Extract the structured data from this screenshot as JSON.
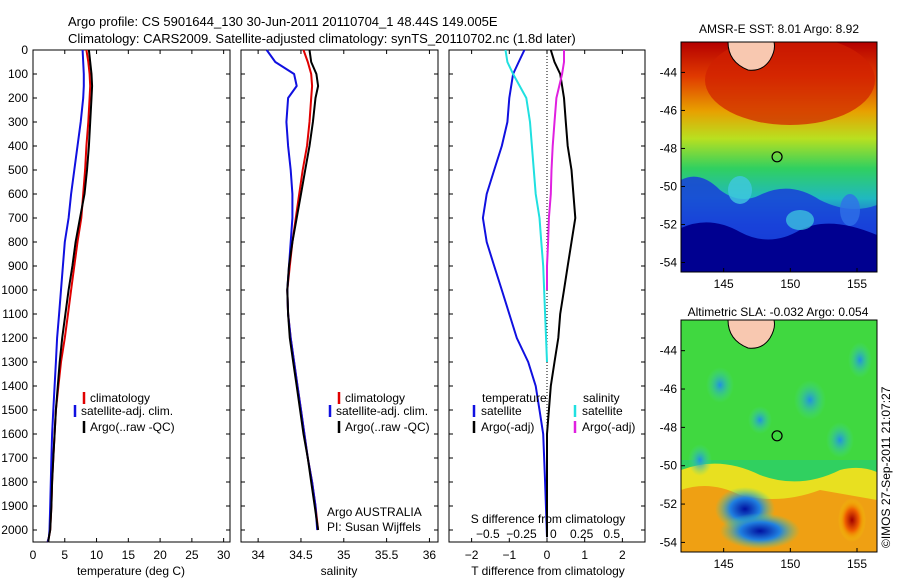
{
  "header": {
    "line1": "Argo profile: CS 5901644_130 30-Jun-2011 20110704_1 48.44S 149.005E",
    "line2": "Climatology: CARS2009. Satellite-adjusted climatology: synTS_20110702.nc (1.8d later)"
  },
  "credit": {
    "line1": "Argo AUSTRALIA",
    "line2": "PI: Susan Wijffels"
  },
  "watermark": "©IMOS 27-Sep-2011 21:07:27",
  "colors": {
    "climatology": "#e00000",
    "satellite": "#1010e0",
    "argo": "#000000",
    "salinity_satellite": "#20e0e0",
    "salinity_argo": "#e020e0",
    "zero_line": "#000000"
  },
  "chart_data": [
    {
      "id": "temperature",
      "type": "line",
      "xlabel": "temperature (deg C)",
      "ylabel": "",
      "xlim": [
        0,
        31
      ],
      "ylim": [
        2050,
        0
      ],
      "xticks": [
        0,
        5,
        10,
        15,
        20,
        25,
        30
      ],
      "yticks": [
        0,
        100,
        200,
        300,
        400,
        500,
        600,
        700,
        800,
        900,
        1000,
        1100,
        1200,
        1300,
        1400,
        1500,
        1600,
        1700,
        1800,
        1900,
        2000
      ],
      "legend": {
        "position": "lower-right",
        "entries": [
          "climatology",
          "satellite-adj. clim.",
          "Argo(..raw -QC)"
        ]
      },
      "series": [
        {
          "name": "climatology",
          "color": "#e00000",
          "x": [
            8.4,
            8.7,
            8.9,
            9.0,
            8.9,
            8.7,
            8.4,
            8.2,
            7.9,
            7.6,
            7.0,
            6.5,
            6.0,
            5.5,
            5.0,
            4.4,
            4.0,
            3.6,
            3.4,
            3.2,
            3.0,
            2.9,
            2.7,
            2.5,
            2.3
          ],
          "y": [
            0,
            50,
            100,
            150,
            200,
            300,
            400,
            500,
            600,
            700,
            800,
            900,
            1000,
            1100,
            1200,
            1300,
            1400,
            1500,
            1600,
            1700,
            1800,
            1900,
            2000,
            2030,
            2050
          ]
        },
        {
          "name": "satellite-adj. clim.",
          "color": "#1010e0",
          "x": [
            7.8,
            7.9,
            8.0,
            8.0,
            7.9,
            7.5,
            7.0,
            6.5,
            6.0,
            5.6,
            5.0,
            4.7,
            4.4,
            4.1,
            3.8,
            3.6,
            3.4,
            3.2,
            3.0,
            2.9,
            2.8,
            2.7,
            2.6,
            2.5,
            2.3
          ],
          "y": [
            0,
            50,
            100,
            150,
            200,
            300,
            400,
            500,
            600,
            700,
            800,
            900,
            1000,
            1100,
            1200,
            1300,
            1400,
            1500,
            1600,
            1700,
            1800,
            1900,
            2000,
            2030,
            2050
          ]
        },
        {
          "name": "Argo(..raw -QC)",
          "color": "#000000",
          "x": [
            8.8,
            9.0,
            9.2,
            9.3,
            9.2,
            9.0,
            8.8,
            8.5,
            8.1,
            7.4,
            6.7,
            6.2,
            5.6,
            5.1,
            4.6,
            4.2,
            3.9,
            3.6,
            3.4,
            3.2,
            3.0,
            2.9,
            2.7,
            2.5,
            2.4
          ],
          "y": [
            0,
            50,
            100,
            150,
            200,
            300,
            400,
            500,
            600,
            700,
            800,
            900,
            1000,
            1100,
            1200,
            1300,
            1400,
            1500,
            1600,
            1700,
            1800,
            1900,
            2000,
            2030,
            2050
          ]
        }
      ]
    },
    {
      "id": "salinity",
      "type": "line",
      "xlabel": "salinity",
      "ylabel": "",
      "xlim": [
        33.8,
        36.1
      ],
      "ylim": [
        2050,
        0
      ],
      "xticks": [
        34,
        34.5,
        35,
        35.5,
        36
      ],
      "legend": {
        "position": "lower-right",
        "entries": [
          "climatology",
          "satellite-adj. clim.",
          "Argo(..raw -QC)"
        ]
      },
      "series": [
        {
          "name": "climatology",
          "color": "#e00000",
          "x": [
            34.53,
            34.58,
            34.62,
            34.63,
            34.62,
            34.6,
            34.57,
            34.52,
            34.48,
            34.44,
            34.4,
            34.37,
            34.34,
            34.35,
            34.38,
            34.42,
            34.46,
            34.5,
            34.54,
            34.58,
            34.63,
            34.67,
            34.7
          ],
          "y": [
            0,
            50,
            100,
            150,
            200,
            300,
            400,
            500,
            600,
            700,
            800,
            900,
            1000,
            1100,
            1200,
            1300,
            1400,
            1500,
            1600,
            1700,
            1800,
            1900,
            2000
          ]
        },
        {
          "name": "satellite-adj. clim.",
          "color": "#1010e0",
          "x": [
            34.1,
            34.2,
            34.42,
            34.45,
            34.35,
            34.33,
            34.35,
            34.38,
            34.4,
            34.4,
            34.38,
            34.36,
            34.34,
            34.35,
            34.38,
            34.42,
            34.46,
            34.5,
            34.54,
            34.58,
            34.63,
            34.67,
            34.69
          ],
          "y": [
            0,
            50,
            100,
            150,
            200,
            300,
            400,
            500,
            600,
            700,
            800,
            900,
            1000,
            1100,
            1200,
            1300,
            1400,
            1500,
            1600,
            1700,
            1800,
            1900,
            2000
          ]
        },
        {
          "name": "Argo(..raw -QC)",
          "color": "#000000",
          "x": [
            34.6,
            34.62,
            34.68,
            34.7,
            34.67,
            34.64,
            34.6,
            34.55,
            34.5,
            34.45,
            34.4,
            34.36,
            34.34,
            34.35,
            34.37,
            34.41,
            34.45,
            34.49,
            34.53,
            34.58,
            34.62,
            34.66,
            34.7
          ],
          "y": [
            0,
            50,
            100,
            150,
            200,
            300,
            400,
            500,
            600,
            700,
            800,
            900,
            1000,
            1100,
            1200,
            1300,
            1400,
            1500,
            1600,
            1700,
            1800,
            1900,
            2000
          ]
        }
      ]
    },
    {
      "id": "differences",
      "type": "line",
      "xlabel": "T difference from climatology",
      "xlabel_top": "S difference from climatology",
      "xlim": [
        -2.6,
        2.6
      ],
      "ylim": [
        2050,
        0
      ],
      "xticks": [
        -2,
        -1,
        0,
        1,
        2
      ],
      "xtick_labels": [
        "−2",
        "−1",
        "0",
        "1",
        "2"
      ],
      "s_ticks_text": "−0.5  −0.25    0    0.25   0.5",
      "legend": {
        "temperature_heading": "temperature",
        "salinity_heading": "salinity",
        "temperature_entries": [
          "satellite",
          "Argo(-adj)"
        ],
        "salinity_entries": [
          "satellite",
          "Argo(-adj)"
        ],
        "position": "lower-right"
      },
      "series": [
        {
          "name": "temperature satellite",
          "color": "#1010e0",
          "x": [
            -0.6,
            -0.75,
            -0.9,
            -1.0,
            -1.05,
            -1.2,
            -1.4,
            -1.6,
            -1.7,
            -1.6,
            -1.4,
            -1.2,
            -1.0,
            -0.8,
            -0.5,
            -0.3,
            -0.2,
            -0.1,
            -0.05,
            0
          ],
          "y": [
            0,
            50,
            100,
            200,
            300,
            400,
            500,
            600,
            700,
            800,
            900,
            1000,
            1100,
            1200,
            1300,
            1400,
            1500,
            1600,
            1800,
            2030
          ]
        },
        {
          "name": "temperature Argo(-adj)",
          "color": "#000000",
          "x": [
            0.1,
            0.2,
            0.35,
            0.45,
            0.5,
            0.55,
            0.65,
            0.7,
            0.75,
            0.65,
            0.55,
            0.45,
            0.35,
            0.3,
            0.2,
            0.1,
            0.05,
            0,
            0,
            0
          ],
          "y": [
            0,
            50,
            100,
            200,
            300,
            400,
            500,
            600,
            700,
            800,
            900,
            1000,
            1100,
            1200,
            1300,
            1400,
            1500,
            1600,
            1800,
            2030
          ]
        },
        {
          "name": "salinity satellite",
          "color": "#20e0e0",
          "x": [
            -1.1,
            -1.05,
            -0.9,
            -0.55,
            -0.45,
            -0.4,
            -0.35,
            -0.3,
            -0.2,
            -0.15,
            -0.1,
            -0.05,
            0
          ],
          "y": [
            0,
            50,
            100,
            200,
            300,
            400,
            500,
            600,
            700,
            800,
            900,
            1100,
            1300
          ]
        },
        {
          "name": "salinity Argo(-adj)",
          "color": "#e020e0",
          "x": [
            0.45,
            0.45,
            0.4,
            0.25,
            0.2,
            0.15,
            0.12,
            0.1,
            0.05,
            0.03,
            0,
            0
          ],
          "y": [
            0,
            50,
            100,
            200,
            300,
            400,
            500,
            600,
            700,
            800,
            900,
            1000
          ]
        }
      ]
    },
    {
      "id": "sst_map",
      "type": "heatmap",
      "title": "AMSR-E SST: 8.01 Argo: 8.92",
      "xlim": [
        141.8,
        156.5
      ],
      "ylim": [
        -54.5,
        -42.4
      ],
      "xticks": [
        145,
        150,
        155
      ],
      "yticks": [
        -44,
        -46,
        -48,
        -50,
        -52,
        -54
      ],
      "argo_marker": {
        "lon": 149.005,
        "lat": -48.44
      }
    },
    {
      "id": "sla_map",
      "type": "heatmap",
      "title": "Altimetric SLA: -0.032 Argo: 0.054",
      "xlim": [
        141.8,
        156.5
      ],
      "ylim": [
        -54.5,
        -42.4
      ],
      "xticks": [
        145,
        150,
        155
      ],
      "yticks": [
        -44,
        -46,
        -48,
        -50,
        -52,
        -54
      ],
      "argo_marker": {
        "lon": 149.005,
        "lat": -48.44
      }
    }
  ]
}
